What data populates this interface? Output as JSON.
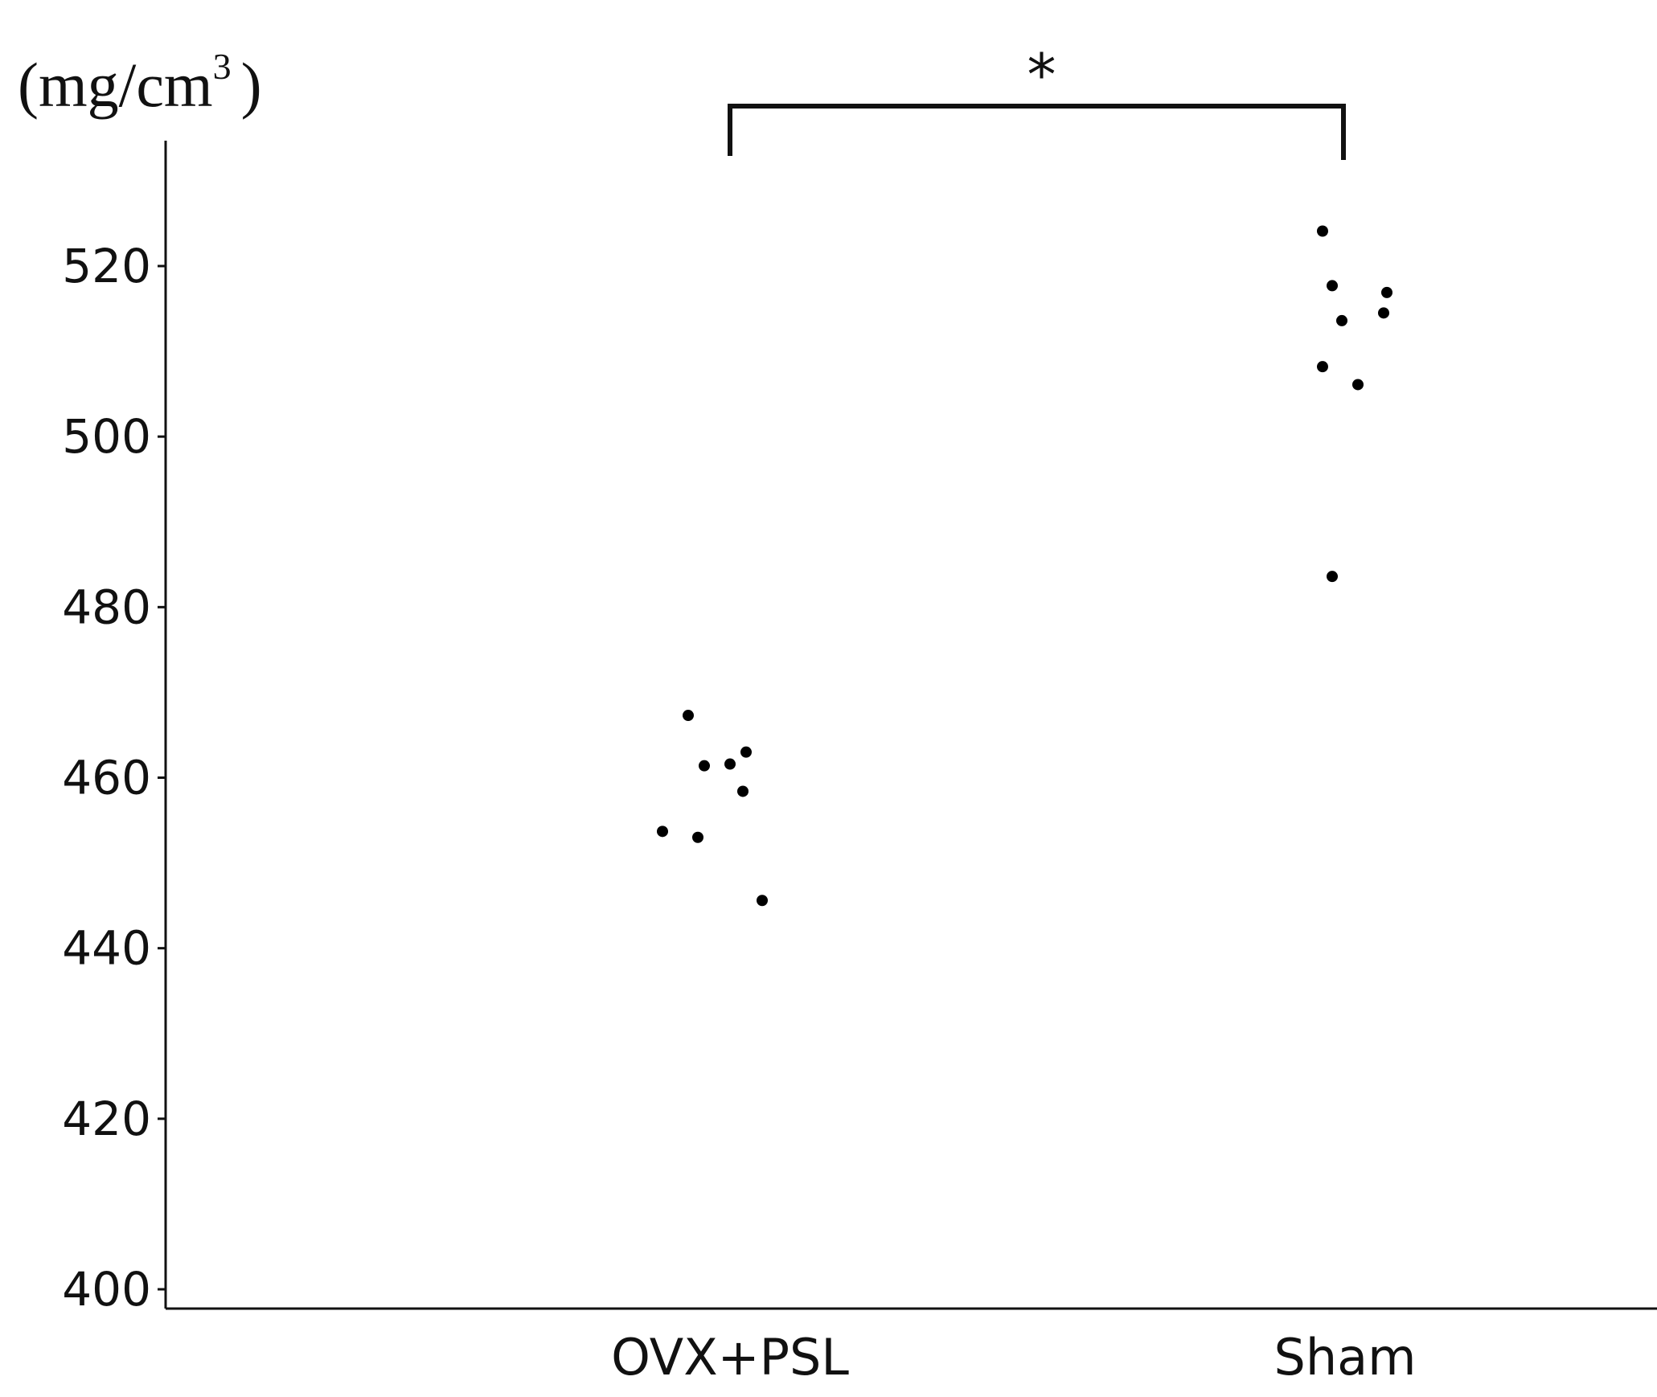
{
  "chart_data": {
    "type": "scatter",
    "title": "",
    "ylabel_unit": {
      "base": "(mg/cm",
      "sup": "3",
      "close": ")"
    },
    "xlabel": "",
    "ylim": [
      400,
      530
    ],
    "yticks": [
      400,
      420,
      440,
      460,
      480,
      500,
      520
    ],
    "categories": [
      "OVX+PSL",
      "Sham"
    ],
    "grid": false,
    "legend": "none",
    "series": [
      {
        "category": "OVX+PSL",
        "points": [
          {
            "jitter": -0.21,
            "y": 453.7
          },
          {
            "jitter": -0.13,
            "y": 467.3
          },
          {
            "jitter": -0.08,
            "y": 461.4
          },
          {
            "jitter": -0.1,
            "y": 453.0
          },
          {
            "jitter": 0.0,
            "y": 461.6
          },
          {
            "jitter": 0.05,
            "y": 463.0
          },
          {
            "jitter": 0.04,
            "y": 458.4
          },
          {
            "jitter": 0.1,
            "y": 445.6
          }
        ]
      },
      {
        "category": "Sham",
        "points": [
          {
            "jitter": -0.07,
            "y": 524.1
          },
          {
            "jitter": -0.04,
            "y": 517.7
          },
          {
            "jitter": -0.01,
            "y": 513.6
          },
          {
            "jitter": -0.07,
            "y": 508.2
          },
          {
            "jitter": 0.04,
            "y": 506.1
          },
          {
            "jitter": 0.12,
            "y": 514.5
          },
          {
            "jitter": 0.13,
            "y": 516.9
          },
          {
            "jitter": -0.04,
            "y": 483.6
          }
        ]
      }
    ],
    "significance": {
      "between": [
        "OVX+PSL",
        "Sham"
      ],
      "label": "*"
    }
  }
}
